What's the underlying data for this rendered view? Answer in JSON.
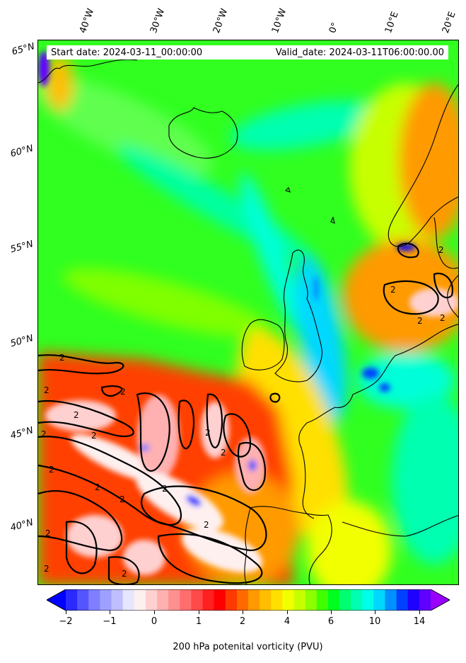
{
  "header": {
    "start_date": "Start date: 2024-03-11_00:00:00",
    "valid_date": "Valid_date: 2024-03-11T06:00:00.00"
  },
  "axes": {
    "lon_labels": [
      "40°W",
      "30°W",
      "20°W",
      "10°W",
      "0°",
      "10°E",
      "20°E"
    ],
    "lat_labels": [
      "65°N",
      "60°N",
      "55°N",
      "50°N",
      "45°N",
      "40°N"
    ]
  },
  "colorbar": {
    "label": "200 hPa potenital vorticity (PVU)",
    "tick_labels": [
      "−2",
      "−1",
      "0",
      "1",
      "2",
      "4",
      "6",
      "10",
      "14"
    ],
    "colors": [
      "#0000ff",
      "#2a2aff",
      "#5555ff",
      "#7f7fff",
      "#9f9fff",
      "#bfbfff",
      "#e6e6ff",
      "#fff0f0",
      "#ffd0d0",
      "#ffb0b0",
      "#ff9090",
      "#ff6e6e",
      "#ff4a4a",
      "#ff2020",
      "#ff0000",
      "#ff3a00",
      "#ff6a00",
      "#ff9a00",
      "#ffbe00",
      "#ffe000",
      "#f2ff00",
      "#c8ff00",
      "#8cff00",
      "#40ff00",
      "#00ff20",
      "#00ff70",
      "#00ffb0",
      "#00ffe8",
      "#00d8ff",
      "#0090ff",
      "#0040ff",
      "#2000ff",
      "#6000ff",
      "#9a00ff"
    ]
  },
  "contour_labels": [
    "2",
    "2",
    "2",
    "2",
    "2",
    "2",
    "2",
    "2",
    "2",
    "2",
    "2",
    "2",
    "2",
    "2",
    "2",
    "2",
    "2",
    "2",
    "2",
    "2"
  ]
}
